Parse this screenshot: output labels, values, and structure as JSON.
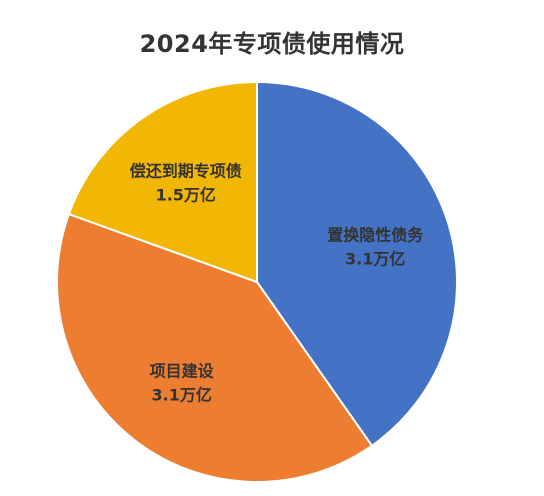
{
  "chart_data": {
    "type": "pie",
    "title": "2024年专项债使用情况",
    "slices": [
      {
        "category": "置换隐性债务",
        "value": 3.1,
        "value_label": "3.1万亿",
        "color": "#4472C4"
      },
      {
        "category": "项目建设",
        "value": 3.1,
        "value_label": "3.1万亿",
        "color": "#ED7D31"
      },
      {
        "category": "偿还到期专项债",
        "value": 1.5,
        "value_label": "1.5万亿",
        "color": "#F2B705"
      }
    ],
    "start_angle": "12 o'clock",
    "direction": "clockwise",
    "legend": "none",
    "labels": "inside slices"
  }
}
